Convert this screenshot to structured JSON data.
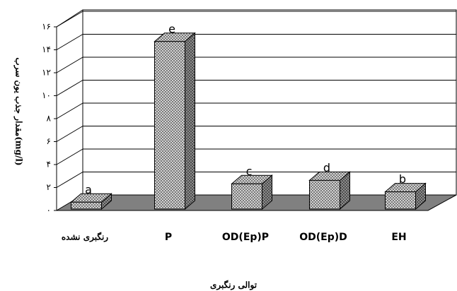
{
  "chart_data": {
    "type": "bar3d",
    "ylabel": "مقدار جذب یون سرب(mg/l)",
    "xlabel": "توالی رنگبری",
    "categories": [
      "رنگبری نشده",
      "P",
      "OD(Ep)P",
      "OD(Ep)D",
      "EH"
    ],
    "values": [
      0.6,
      14.6,
      2.2,
      2.5,
      1.5
    ],
    "letters": [
      "a",
      "e",
      "c",
      "d",
      "b"
    ],
    "color": "#c8c8c8",
    "ylim": [
      0,
      16
    ],
    "yticks": [
      {
        "value": 0,
        "label": "۰"
      },
      {
        "value": 2,
        "label": "۲"
      },
      {
        "value": 4,
        "label": "۴"
      },
      {
        "value": 6,
        "label": "۶"
      },
      {
        "value": 8,
        "label": "۸"
      },
      {
        "value": 10,
        "label": "۱۰"
      },
      {
        "value": 12,
        "label": "۱۲"
      },
      {
        "value": 14,
        "label": "۱۴"
      },
      {
        "value": 16,
        "label": "۱۶"
      }
    ],
    "grid": true
  }
}
